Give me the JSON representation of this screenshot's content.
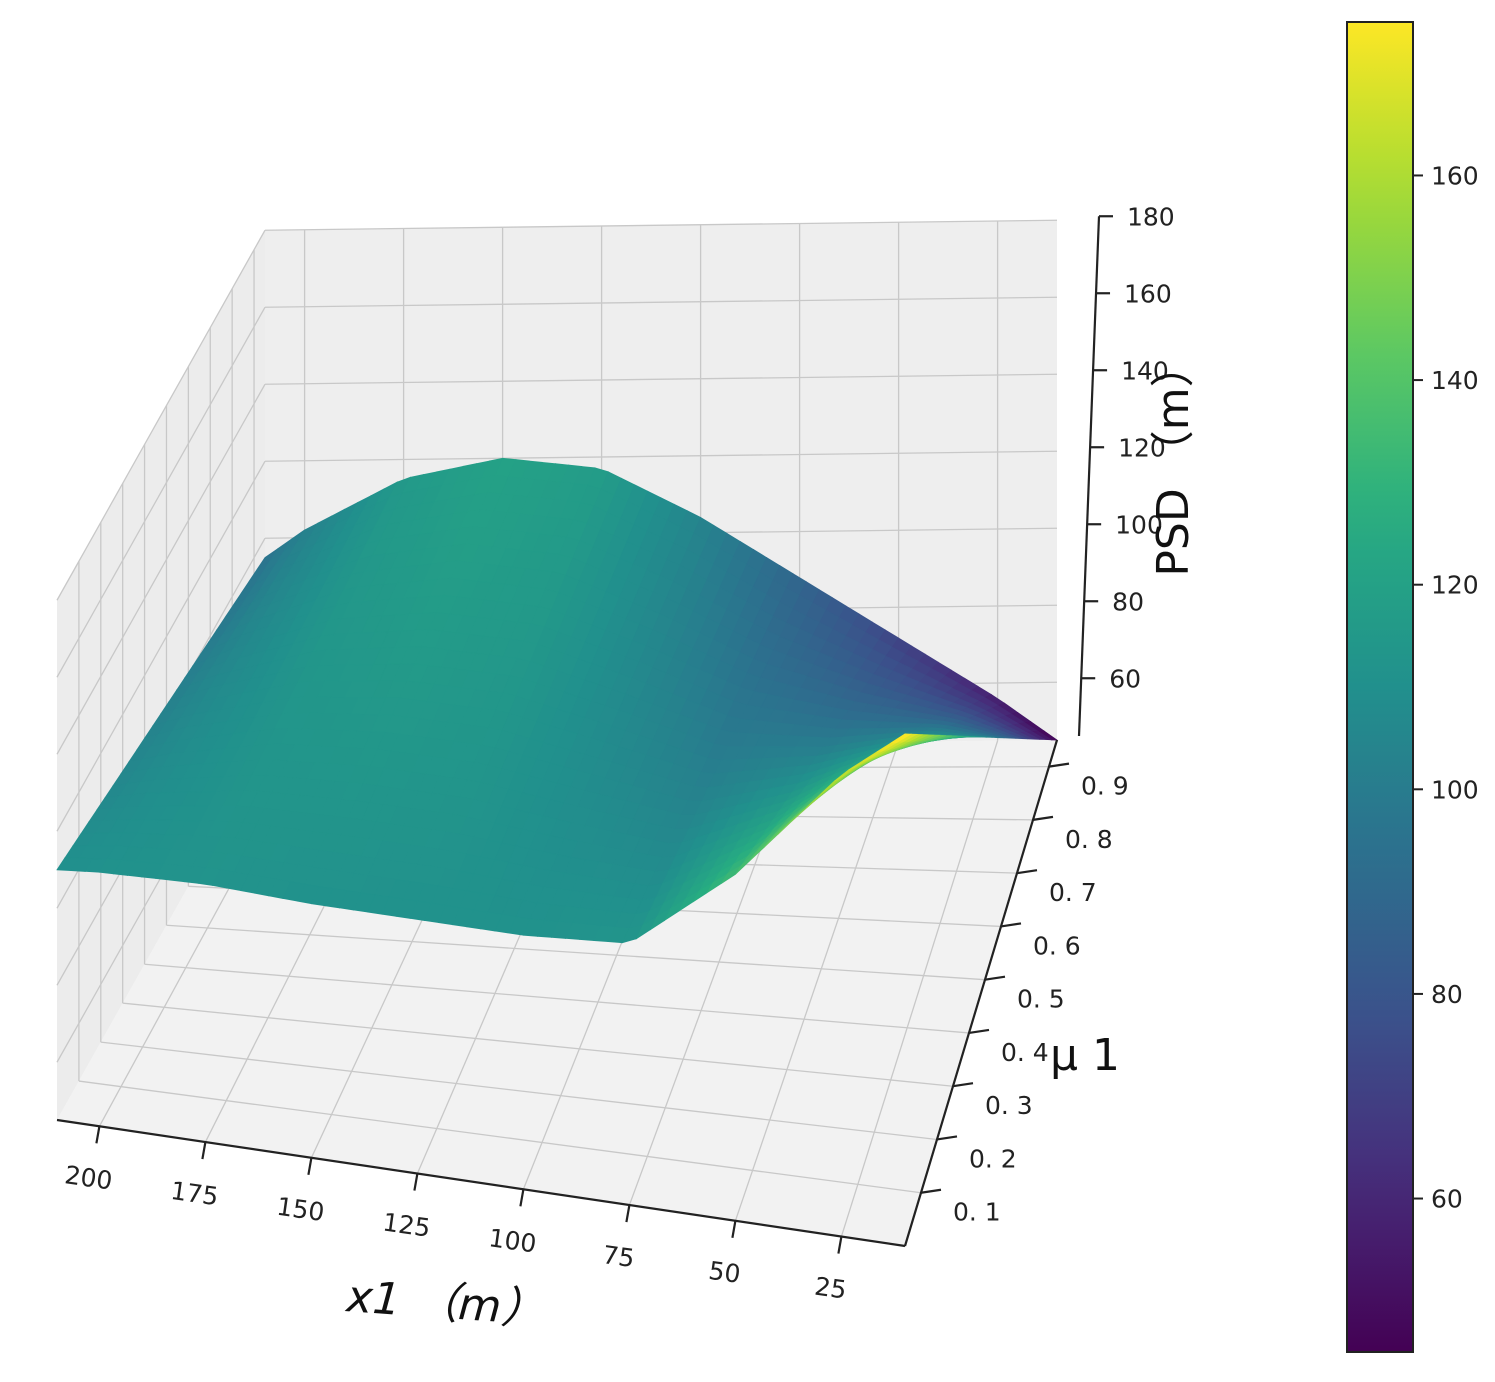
{
  "chart_data": {
    "type": "surface3d",
    "x": {
      "label": "x1 （m）",
      "ticks": [
        200,
        175,
        150,
        125,
        100,
        75,
        50,
        25
      ],
      "range": [
        210,
        10
      ]
    },
    "y": {
      "label": "μ 1",
      "ticks": [
        "0. 1",
        "0. 2",
        "0. 3",
        "0. 4",
        "0. 5",
        "0. 6",
        "0. 7",
        "0. 8",
        "0. 9"
      ],
      "tick_values": [
        0.1,
        0.2,
        0.3,
        0.4,
        0.5,
        0.6,
        0.7,
        0.8,
        0.9
      ],
      "range": [
        0.0,
        0.95
      ]
    },
    "z": {
      "label": "PSD （m）",
      "ticks": [
        60,
        80,
        100,
        120,
        140,
        160,
        180
      ],
      "range": [
        45,
        180
      ]
    },
    "surface": {
      "x_samples": [
        210,
        200,
        175,
        150,
        125,
        100,
        75,
        50,
        25,
        10
      ],
      "mu_samples": [
        0.0,
        0.1,
        0.2,
        0.3,
        0.4,
        0.5,
        0.6,
        0.7,
        0.8,
        0.9,
        0.95
      ],
      "psd_at_mu0": [
        110,
        111,
        112,
        111,
        111,
        111,
        113,
        135,
        165,
        178
      ],
      "psd_at_mu095": [
        95,
        102,
        115,
        120,
        117,
        104,
        88,
        72,
        56,
        45
      ]
    },
    "colorbar": {
      "ticks": [
        60,
        80,
        100,
        120,
        140,
        160
      ],
      "range": [
        45,
        175
      ],
      "colormap": "viridis"
    },
    "grid": true
  }
}
